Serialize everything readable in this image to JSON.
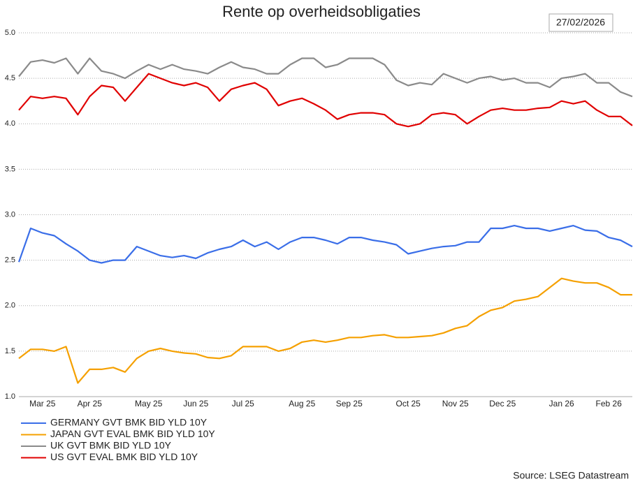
{
  "chart_data": {
    "type": "line",
    "title": "Rente op overheidsobligaties",
    "date_label": "27/02/2026",
    "source": "Source: LSEG Datastream",
    "categories": [
      null,
      null,
      "Mar 25",
      null,
      null,
      null,
      "Apr 25",
      null,
      null,
      null,
      null,
      "May 25",
      null,
      null,
      null,
      "Jun 25",
      null,
      null,
      null,
      "Jul 25",
      null,
      null,
      null,
      null,
      "Aug 25",
      null,
      null,
      null,
      "Sep 25",
      null,
      null,
      null,
      null,
      "Oct 25",
      null,
      null,
      null,
      "Nov 25",
      null,
      null,
      null,
      "Dec 25",
      null,
      null,
      null,
      null,
      "Jan 26",
      null,
      null,
      null,
      "Feb 26",
      null,
      null
    ],
    "ylim": [
      1.0,
      5.0
    ],
    "yticks": [
      {
        "value": 1.0,
        "label": "1.0"
      },
      1.5,
      {
        "value": 2.0,
        "label": "2.0"
      },
      2.5,
      {
        "value": 3.0,
        "label": "3.0"
      },
      3.5,
      {
        "value": 4.0,
        "label": "4.0"
      },
      4.5,
      {
        "value": 5.0,
        "label": "5.0"
      }
    ],
    "grid": true,
    "legend": "bottom-left",
    "series": [
      {
        "name": "GERMANY GVT BMK BID YLD 10Y",
        "color": "#3a6ee8",
        "values": [
          2.48,
          2.85,
          2.8,
          2.77,
          2.68,
          2.6,
          2.5,
          2.47,
          2.5,
          2.5,
          2.65,
          2.6,
          2.55,
          2.53,
          2.55,
          2.52,
          2.58,
          2.62,
          2.65,
          2.72,
          2.65,
          2.7,
          2.62,
          2.7,
          2.75,
          2.75,
          2.72,
          2.68,
          2.75,
          2.75,
          2.72,
          2.7,
          2.67,
          2.57,
          2.6,
          2.63,
          2.65,
          2.66,
          2.7,
          2.7,
          2.85,
          2.85,
          2.88,
          2.85,
          2.85,
          2.82,
          2.85,
          2.88,
          2.83,
          2.82,
          2.75,
          2.72,
          2.65
        ]
      },
      {
        "name": "JAPAN GVT EVAL BMK BID YLD 10Y",
        "color": "#f5a000",
        "values": [
          1.42,
          1.52,
          1.52,
          1.5,
          1.55,
          1.15,
          1.3,
          1.3,
          1.32,
          1.27,
          1.42,
          1.5,
          1.53,
          1.5,
          1.48,
          1.47,
          1.43,
          1.42,
          1.45,
          1.55,
          1.55,
          1.55,
          1.5,
          1.53,
          1.6,
          1.62,
          1.6,
          1.62,
          1.65,
          1.65,
          1.67,
          1.68,
          1.65,
          1.65,
          1.66,
          1.67,
          1.7,
          1.75,
          1.78,
          1.88,
          1.95,
          1.98,
          2.05,
          2.07,
          2.1,
          2.2,
          2.3,
          2.27,
          2.25,
          2.25,
          2.2,
          2.12,
          2.12
        ]
      },
      {
        "name": "UK GVT BMK BID YLD 10Y",
        "color": "#8a8a8a",
        "values": [
          4.52,
          4.68,
          4.7,
          4.67,
          4.72,
          4.55,
          4.72,
          4.58,
          4.55,
          4.5,
          4.58,
          4.65,
          4.6,
          4.65,
          4.6,
          4.58,
          4.55,
          4.62,
          4.68,
          4.62,
          4.6,
          4.55,
          4.55,
          4.65,
          4.72,
          4.72,
          4.62,
          4.65,
          4.72,
          4.72,
          4.72,
          4.65,
          4.48,
          4.42,
          4.45,
          4.43,
          4.55,
          4.5,
          4.45,
          4.5,
          4.52,
          4.48,
          4.5,
          4.45,
          4.45,
          4.4,
          4.5,
          4.52,
          4.55,
          4.45,
          4.45,
          4.35,
          4.3
        ]
      },
      {
        "name": "US GVT EVAL BMK BID YLD 10Y",
        "color": "#e00000",
        "values": [
          4.15,
          4.3,
          4.28,
          4.3,
          4.28,
          4.1,
          4.3,
          4.42,
          4.4,
          4.25,
          4.4,
          4.55,
          4.5,
          4.45,
          4.42,
          4.45,
          4.4,
          4.25,
          4.38,
          4.42,
          4.45,
          4.38,
          4.2,
          4.25,
          4.28,
          4.22,
          4.15,
          4.05,
          4.1,
          4.12,
          4.12,
          4.1,
          4.0,
          3.97,
          4.0,
          4.1,
          4.12,
          4.1,
          4.0,
          4.08,
          4.15,
          4.17,
          4.15,
          4.15,
          4.17,
          4.18,
          4.25,
          4.22,
          4.25,
          4.15,
          4.08,
          4.08,
          3.98
        ]
      }
    ]
  }
}
